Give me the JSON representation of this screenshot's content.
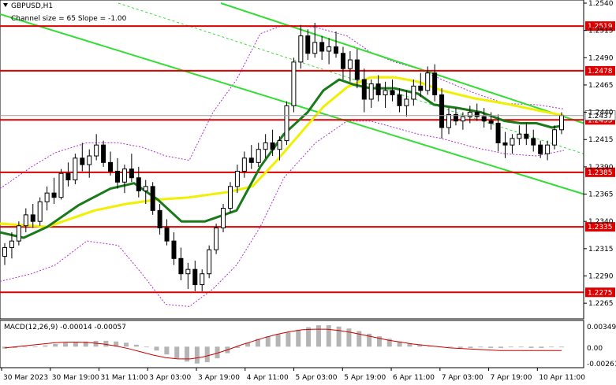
{
  "header": {
    "symbol_title": "GBPUSD,H1",
    "channel_info": "Channel size = 65 Slope = -1.00"
  },
  "macd": {
    "label": "MACD(12,26,9) -0.00014 -0.00057",
    "scale_ticks": [
      "0.00349",
      "0.00",
      "-0.00261"
    ]
  },
  "colors": {
    "candle": "#000000",
    "ma_fast": "#1a7a1a",
    "ma_slow": "#f0f000",
    "channel": "#33dd33",
    "bollinger": "#b030d0",
    "level": "#dd0000",
    "macd_hist": "#b4b4b4",
    "macd_signal": "#cc0000"
  },
  "chart_data": {
    "type": "candlestick",
    "title": "GBPUSD,H1",
    "ylim": [
      1.2255,
      1.254
    ],
    "y_ticks": [
      "1.2540",
      "1.2515",
      "1.2490",
      "1.2465",
      "1.2440",
      "1.2415",
      "1.2390",
      "1.2365",
      "1.2340",
      "1.2315",
      "1.2290",
      "1.2265"
    ],
    "x_ticks": [
      "30 Mar 2023",
      "30 Mar 19:00",
      "31 Mar 11:00",
      "3 Apr 03:00",
      "3 Apr 19:00",
      "4 Apr 11:00",
      "5 Apr 03:00",
      "5 Apr 19:00",
      "6 Apr 11:00",
      "7 Apr 03:00",
      "7 Apr 19:00",
      "10 Apr 11:00"
    ],
    "levels": [
      {
        "value": 1.2519,
        "label": "1.2519"
      },
      {
        "value": 1.2478,
        "label": "1.2478"
      },
      {
        "value": 1.2433,
        "label": "1.2433"
      },
      {
        "value": 1.2385,
        "label": "1.2385"
      },
      {
        "value": 1.2335,
        "label": "1.2335"
      },
      {
        "value": 1.2275,
        "label": "1.2275"
      }
    ],
    "current_price": {
      "value": 1.2437,
      "label": "1.2437"
    },
    "series": [
      {
        "name": "MA slow",
        "points": [
          [
            0,
            1.2338
          ],
          [
            60,
            1.2335
          ],
          [
            120,
            1.235
          ],
          [
            160,
            1.2356
          ],
          [
            200,
            1.236
          ],
          [
            240,
            1.2362
          ],
          [
            290,
            1.2367
          ],
          [
            320,
            1.2372
          ],
          [
            350,
            1.2395
          ],
          [
            380,
            1.242
          ],
          [
            410,
            1.2445
          ],
          [
            440,
            1.2463
          ],
          [
            470,
            1.2472
          ],
          [
            500,
            1.2472
          ],
          [
            530,
            1.2468
          ],
          [
            560,
            1.246
          ],
          [
            600,
            1.2453
          ],
          [
            640,
            1.2448
          ],
          [
            680,
            1.2442
          ],
          [
            715,
            1.2437
          ]
        ]
      },
      {
        "name": "MA fast",
        "points": [
          [
            0,
            1.233
          ],
          [
            30,
            1.2325
          ],
          [
            60,
            1.2335
          ],
          [
            100,
            1.2355
          ],
          [
            140,
            1.237
          ],
          [
            170,
            1.2375
          ],
          [
            200,
            1.236
          ],
          [
            230,
            1.234
          ],
          [
            260,
            1.234
          ],
          [
            300,
            1.235
          ],
          [
            330,
            1.239
          ],
          [
            360,
            1.242
          ],
          [
            390,
            1.244
          ],
          [
            410,
            1.246
          ],
          [
            430,
            1.247
          ],
          [
            450,
            1.2465
          ],
          [
            470,
            1.2462
          ],
          [
            500,
            1.2462
          ],
          [
            530,
            1.2457
          ],
          [
            550,
            1.2447
          ],
          [
            580,
            1.2444
          ],
          [
            610,
            1.244
          ],
          [
            640,
            1.2432
          ],
          [
            660,
            1.243
          ],
          [
            680,
            1.243
          ],
          [
            700,
            1.2426
          ],
          [
            715,
            1.2428
          ]
        ]
      },
      {
        "name": "Channel upper",
        "points": [
          [
            280,
            1.254
          ],
          [
            740,
            1.243
          ]
        ]
      },
      {
        "name": "Channel lower",
        "points": [
          [
            0,
            1.253
          ],
          [
            740,
            1.2365
          ]
        ]
      },
      {
        "name": "Channel middle",
        "points": [
          [
            150,
            1.254
          ],
          [
            740,
            1.2402
          ]
        ]
      },
      {
        "name": "Bollinger upper",
        "points": [
          [
            0,
            1.237
          ],
          [
            40,
            1.239
          ],
          [
            70,
            1.2403
          ],
          [
            110,
            1.2412
          ],
          [
            150,
            1.2412
          ],
          [
            180,
            1.2408
          ],
          [
            210,
            1.24
          ],
          [
            240,
            1.2396
          ],
          [
            270,
            1.244
          ],
          [
            300,
            1.247
          ],
          [
            330,
            1.2512
          ],
          [
            360,
            1.252
          ],
          [
            400,
            1.2518
          ],
          [
            440,
            1.251
          ],
          [
            470,
            1.2495
          ],
          [
            500,
            1.2486
          ],
          [
            530,
            1.248
          ],
          [
            560,
            1.247
          ],
          [
            600,
            1.2458
          ],
          [
            640,
            1.2448
          ],
          [
            680,
            1.2447
          ],
          [
            715,
            1.2443
          ]
        ]
      },
      {
        "name": "Bollinger lower",
        "points": [
          [
            0,
            1.2285
          ],
          [
            40,
            1.2292
          ],
          [
            70,
            1.23
          ],
          [
            110,
            1.2322
          ],
          [
            150,
            1.2318
          ],
          [
            180,
            1.2292
          ],
          [
            210,
            1.2264
          ],
          [
            240,
            1.2262
          ],
          [
            270,
            1.2278
          ],
          [
            300,
            1.23
          ],
          [
            330,
            1.2335
          ],
          [
            360,
            1.238
          ],
          [
            400,
            1.2412
          ],
          [
            440,
            1.2432
          ],
          [
            470,
            1.2432
          ],
          [
            500,
            1.2426
          ],
          [
            530,
            1.242
          ],
          [
            560,
            1.2416
          ],
          [
            600,
            1.2408
          ],
          [
            640,
            1.2402
          ],
          [
            680,
            1.24
          ],
          [
            715,
            1.2405
          ]
        ]
      }
    ],
    "candles": [
      [
        1.2308,
        1.232,
        1.23,
        1.2316
      ],
      [
        1.2316,
        1.233,
        1.2306,
        1.2322
      ],
      [
        1.2322,
        1.234,
        1.2318,
        1.2336
      ],
      [
        1.2336,
        1.2352,
        1.233,
        1.2346
      ],
      [
        1.2346,
        1.2356,
        1.2334,
        1.234
      ],
      [
        1.234,
        1.2362,
        1.2336,
        1.2358
      ],
      [
        1.2358,
        1.2372,
        1.235,
        1.2366
      ],
      [
        1.2366,
        1.238,
        1.2356,
        1.2362
      ],
      [
        1.2362,
        1.2388,
        1.236,
        1.2384
      ],
      [
        1.2384,
        1.2394,
        1.2372,
        1.2378
      ],
      [
        1.2378,
        1.2402,
        1.2374,
        1.2398
      ],
      [
        1.2398,
        1.2412,
        1.2386,
        1.2392
      ],
      [
        1.2392,
        1.2406,
        1.238,
        1.24
      ],
      [
        1.24,
        1.242,
        1.2396,
        1.241
      ],
      [
        1.241,
        1.2414,
        1.239,
        1.2394
      ],
      [
        1.2394,
        1.2404,
        1.2382,
        1.2386
      ],
      [
        1.2386,
        1.2398,
        1.237,
        1.2376
      ],
      [
        1.2376,
        1.2392,
        1.2366,
        1.2388
      ],
      [
        1.2388,
        1.2402,
        1.2376,
        1.238
      ],
      [
        1.238,
        1.239,
        1.2362,
        1.2368
      ],
      [
        1.2368,
        1.2378,
        1.2356,
        1.2372
      ],
      [
        1.2372,
        1.2376,
        1.2346,
        1.235
      ],
      [
        1.235,
        1.2356,
        1.2328,
        1.2334
      ],
      [
        1.2334,
        1.2342,
        1.2318,
        1.2322
      ],
      [
        1.2322,
        1.233,
        1.23,
        1.2306
      ],
      [
        1.2306,
        1.2316,
        1.2286,
        1.2292
      ],
      [
        1.2292,
        1.2302,
        1.2278,
        1.2296
      ],
      [
        1.2296,
        1.2304,
        1.2276,
        1.2282
      ],
      [
        1.2282,
        1.2296,
        1.2276,
        1.2292
      ],
      [
        1.2292,
        1.2318,
        1.2288,
        1.2314
      ],
      [
        1.2314,
        1.2338,
        1.231,
        1.2334
      ],
      [
        1.2334,
        1.2356,
        1.233,
        1.2352
      ],
      [
        1.2352,
        1.2376,
        1.2348,
        1.2372
      ],
      [
        1.2372,
        1.2392,
        1.2366,
        1.2386
      ],
      [
        1.2386,
        1.2404,
        1.238,
        1.2398
      ],
      [
        1.2398,
        1.241,
        1.2388,
        1.2394
      ],
      [
        1.2394,
        1.2412,
        1.239,
        1.2406
      ],
      [
        1.2406,
        1.242,
        1.2398,
        1.2412
      ],
      [
        1.2412,
        1.2424,
        1.24,
        1.2406
      ],
      [
        1.2406,
        1.2418,
        1.2396,
        1.2414
      ],
      [
        1.2414,
        1.245,
        1.241,
        1.2446
      ],
      [
        1.2446,
        1.249,
        1.244,
        1.2486
      ],
      [
        1.2486,
        1.252,
        1.248,
        1.251
      ],
      [
        1.251,
        1.2516,
        1.2488,
        1.2494
      ],
      [
        1.2494,
        1.2522,
        1.249,
        1.2504
      ],
      [
        1.2504,
        1.251,
        1.2488,
        1.2496
      ],
      [
        1.2496,
        1.2508,
        1.2484,
        1.25
      ],
      [
        1.25,
        1.2514,
        1.249,
        1.2494
      ],
      [
        1.2494,
        1.25,
        1.247,
        1.248
      ],
      [
        1.248,
        1.2496,
        1.2468,
        1.2488
      ],
      [
        1.2488,
        1.2498,
        1.2462,
        1.247
      ],
      [
        1.247,
        1.248,
        1.244,
        1.2452
      ],
      [
        1.2452,
        1.247,
        1.2444,
        1.2466
      ],
      [
        1.2466,
        1.2474,
        1.245,
        1.2456
      ],
      [
        1.2456,
        1.2468,
        1.2444,
        1.246
      ],
      [
        1.246,
        1.247,
        1.245,
        1.2456
      ],
      [
        1.2456,
        1.2462,
        1.244,
        1.2446
      ],
      [
        1.2446,
        1.246,
        1.2436,
        1.2452
      ],
      [
        1.2452,
        1.247,
        1.2446,
        1.2464
      ],
      [
        1.2464,
        1.2476,
        1.2454,
        1.246
      ],
      [
        1.246,
        1.2482,
        1.2456,
        1.2476
      ],
      [
        1.2476,
        1.2484,
        1.245,
        1.2456
      ],
      [
        1.2456,
        1.2462,
        1.2416,
        1.2426
      ],
      [
        1.2426,
        1.2444,
        1.242,
        1.2438
      ],
      [
        1.2438,
        1.2444,
        1.2428,
        1.2432
      ],
      [
        1.2432,
        1.244,
        1.2424,
        1.2436
      ],
      [
        1.2436,
        1.2446,
        1.243,
        1.244
      ],
      [
        1.244,
        1.2448,
        1.2432,
        1.2436
      ],
      [
        1.2436,
        1.2444,
        1.2426,
        1.2432
      ],
      [
        1.2432,
        1.244,
        1.2424,
        1.243
      ],
      [
        1.243,
        1.2438,
        1.2404,
        1.2412
      ],
      [
        1.2412,
        1.2422,
        1.2398,
        1.241
      ],
      [
        1.241,
        1.242,
        1.2402,
        1.2416
      ],
      [
        1.2416,
        1.2428,
        1.241,
        1.242
      ],
      [
        1.242,
        1.243,
        1.241,
        1.2416
      ],
      [
        1.2416,
        1.2424,
        1.2404,
        1.241
      ],
      [
        1.241,
        1.2414,
        1.2398,
        1.2402
      ],
      [
        1.2402,
        1.2414,
        1.2396,
        1.241
      ],
      [
        1.241,
        1.2428,
        1.2406,
        1.2424
      ],
      [
        1.2424,
        1.244,
        1.242,
        1.2437
      ]
    ],
    "macd_ylim": [
      -0.003,
      0.0038
    ],
    "macd_histogram": [
      -0.0003,
      -0.0002,
      -0.0001,
      0.0,
      0.0002,
      0.0004,
      0.0006,
      0.0007,
      0.0008,
      0.0009,
      0.0009,
      0.0008,
      0.0006,
      0.0003,
      -0.0001,
      -0.0006,
      -0.0012,
      -0.0018,
      -0.0023,
      -0.0026,
      -0.0024,
      -0.0018,
      -0.001,
      -0.0002,
      0.0006,
      0.0012,
      0.0016,
      0.0019,
      0.0022,
      0.0026,
      0.003,
      0.0033,
      0.0033,
      0.0031,
      0.0028,
      0.0024,
      0.002,
      0.0016,
      0.0012,
      0.0008,
      0.0005,
      0.0003,
      0.0001,
      0.0,
      -0.0001,
      -0.0002,
      -0.0002,
      -0.0001,
      -0.0002,
      -0.0002,
      -0.0001,
      -0.0001,
      -0.0002,
      -0.0002,
      -0.0001,
      -0.0001
    ],
    "macd_signal": [
      -0.0002,
      0.0,
      0.0002,
      0.0004,
      0.0006,
      0.0007,
      0.0007,
      0.0006,
      0.0004,
      0.0001,
      -0.0003,
      -0.0008,
      -0.0013,
      -0.0017,
      -0.0019,
      -0.0019,
      -0.0016,
      -0.0011,
      -0.0005,
      0.0002,
      0.0008,
      0.0014,
      0.0019,
      0.0023,
      0.0026,
      0.0027,
      0.0027,
      0.0025,
      0.0022,
      0.0018,
      0.0014,
      0.001,
      0.0007,
      0.0004,
      0.0002,
      0.0,
      -0.0002,
      -0.0003,
      -0.0004,
      -0.0005,
      -0.0006,
      -0.0006,
      -0.0006,
      -0.0006,
      -0.0006,
      -0.0006
    ]
  }
}
